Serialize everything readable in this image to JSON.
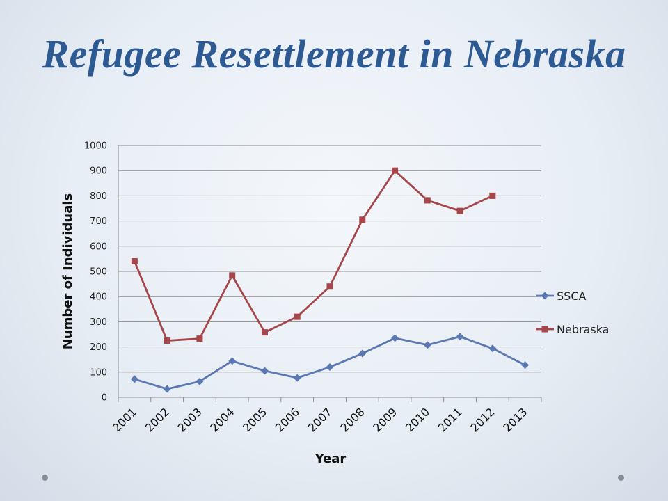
{
  "slide": {
    "title": "Refugee Resettlement in Nebraska"
  },
  "chart_data": {
    "type": "line",
    "categories": [
      "2001",
      "2002",
      "2003",
      "2004",
      "2005",
      "2006",
      "2007",
      "2008",
      "2009",
      "2010",
      "2011",
      "2012",
      "2013"
    ],
    "xlabel": "Year",
    "ylabel": "Number of Individuals",
    "ylim": [
      0,
      1000
    ],
    "yticks": [
      0,
      100,
      200,
      300,
      400,
      500,
      600,
      700,
      800,
      900,
      1000
    ],
    "grid": true,
    "legend_position": "right",
    "series": [
      {
        "name": "SSCA",
        "color": "#5b78b3",
        "marker": "diamond",
        "values": [
          72,
          33,
          63,
          144,
          105,
          77,
          120,
          174,
          235,
          208,
          241,
          194,
          128
        ]
      },
      {
        "name": "Nebraska",
        "color": "#a5474a",
        "marker": "square",
        "values": [
          540,
          225,
          233,
          484,
          258,
          320,
          440,
          705,
          900,
          782,
          740,
          800,
          null
        ]
      }
    ]
  }
}
